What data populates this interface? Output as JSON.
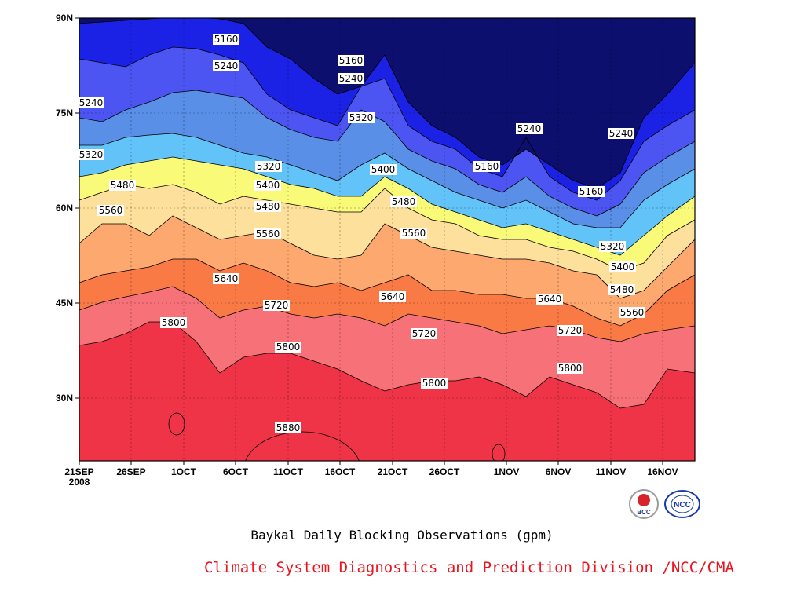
{
  "chart_data": {
    "type": "contour",
    "subtitle": "Baykal Daily Blocking Observations (gpm)",
    "x_ticks": [
      "21SEP",
      "26SEP",
      "1OCT",
      "6OCT",
      "11OCT",
      "16OCT",
      "21OCT",
      "26OCT",
      "1NOV",
      "6NOV",
      "11NOV",
      "16NOV"
    ],
    "x_year": "2008",
    "y_ticks": [
      "90N",
      "75N",
      "60N",
      "45N",
      "30N"
    ],
    "ylim": [
      20,
      90
    ],
    "levels": [
      5160,
      5240,
      5320,
      5400,
      5480,
      5560,
      5640,
      5720,
      5800,
      5880
    ],
    "fill_colors": [
      "#0c0f6e",
      "#1b22e6",
      "#4c55f2",
      "#5a8fe8",
      "#61c3f7",
      "#fafa79",
      "#fde09c",
      "#fca86e",
      "#fa7a46",
      "#f77179",
      "#ee3446"
    ],
    "contour_labels": [
      {
        "text": "5160"
      },
      {
        "text": "5240"
      },
      {
        "text": "5160"
      },
      {
        "text": "5240"
      },
      {
        "text": "5240"
      },
      {
        "text": "5320"
      },
      {
        "text": "5320"
      },
      {
        "text": "5240"
      },
      {
        "text": "5160"
      },
      {
        "text": "5240"
      },
      {
        "text": "5160"
      },
      {
        "text": "5320"
      },
      {
        "text": "5400"
      },
      {
        "text": "5480"
      },
      {
        "text": "5400"
      },
      {
        "text": "5480"
      },
      {
        "text": "5560"
      },
      {
        "text": "5480"
      },
      {
        "text": "5560"
      },
      {
        "text": "5560"
      },
      {
        "text": "5320"
      },
      {
        "text": "5400"
      },
      {
        "text": "5480"
      },
      {
        "text": "5560"
      },
      {
        "text": "5640"
      },
      {
        "text": "5720"
      },
      {
        "text": "5640"
      },
      {
        "text": "5640"
      },
      {
        "text": "5800"
      },
      {
        "text": "5720"
      },
      {
        "text": "5720"
      },
      {
        "text": "5800"
      },
      {
        "text": "5800"
      },
      {
        "text": "5800"
      },
      {
        "text": "5880"
      }
    ],
    "grid": true
  },
  "credit": "Climate System Diagnostics and Prediction Division /NCC/CMA",
  "logos": {
    "bcc_text": "BCC",
    "ncc_text": "NCC"
  }
}
